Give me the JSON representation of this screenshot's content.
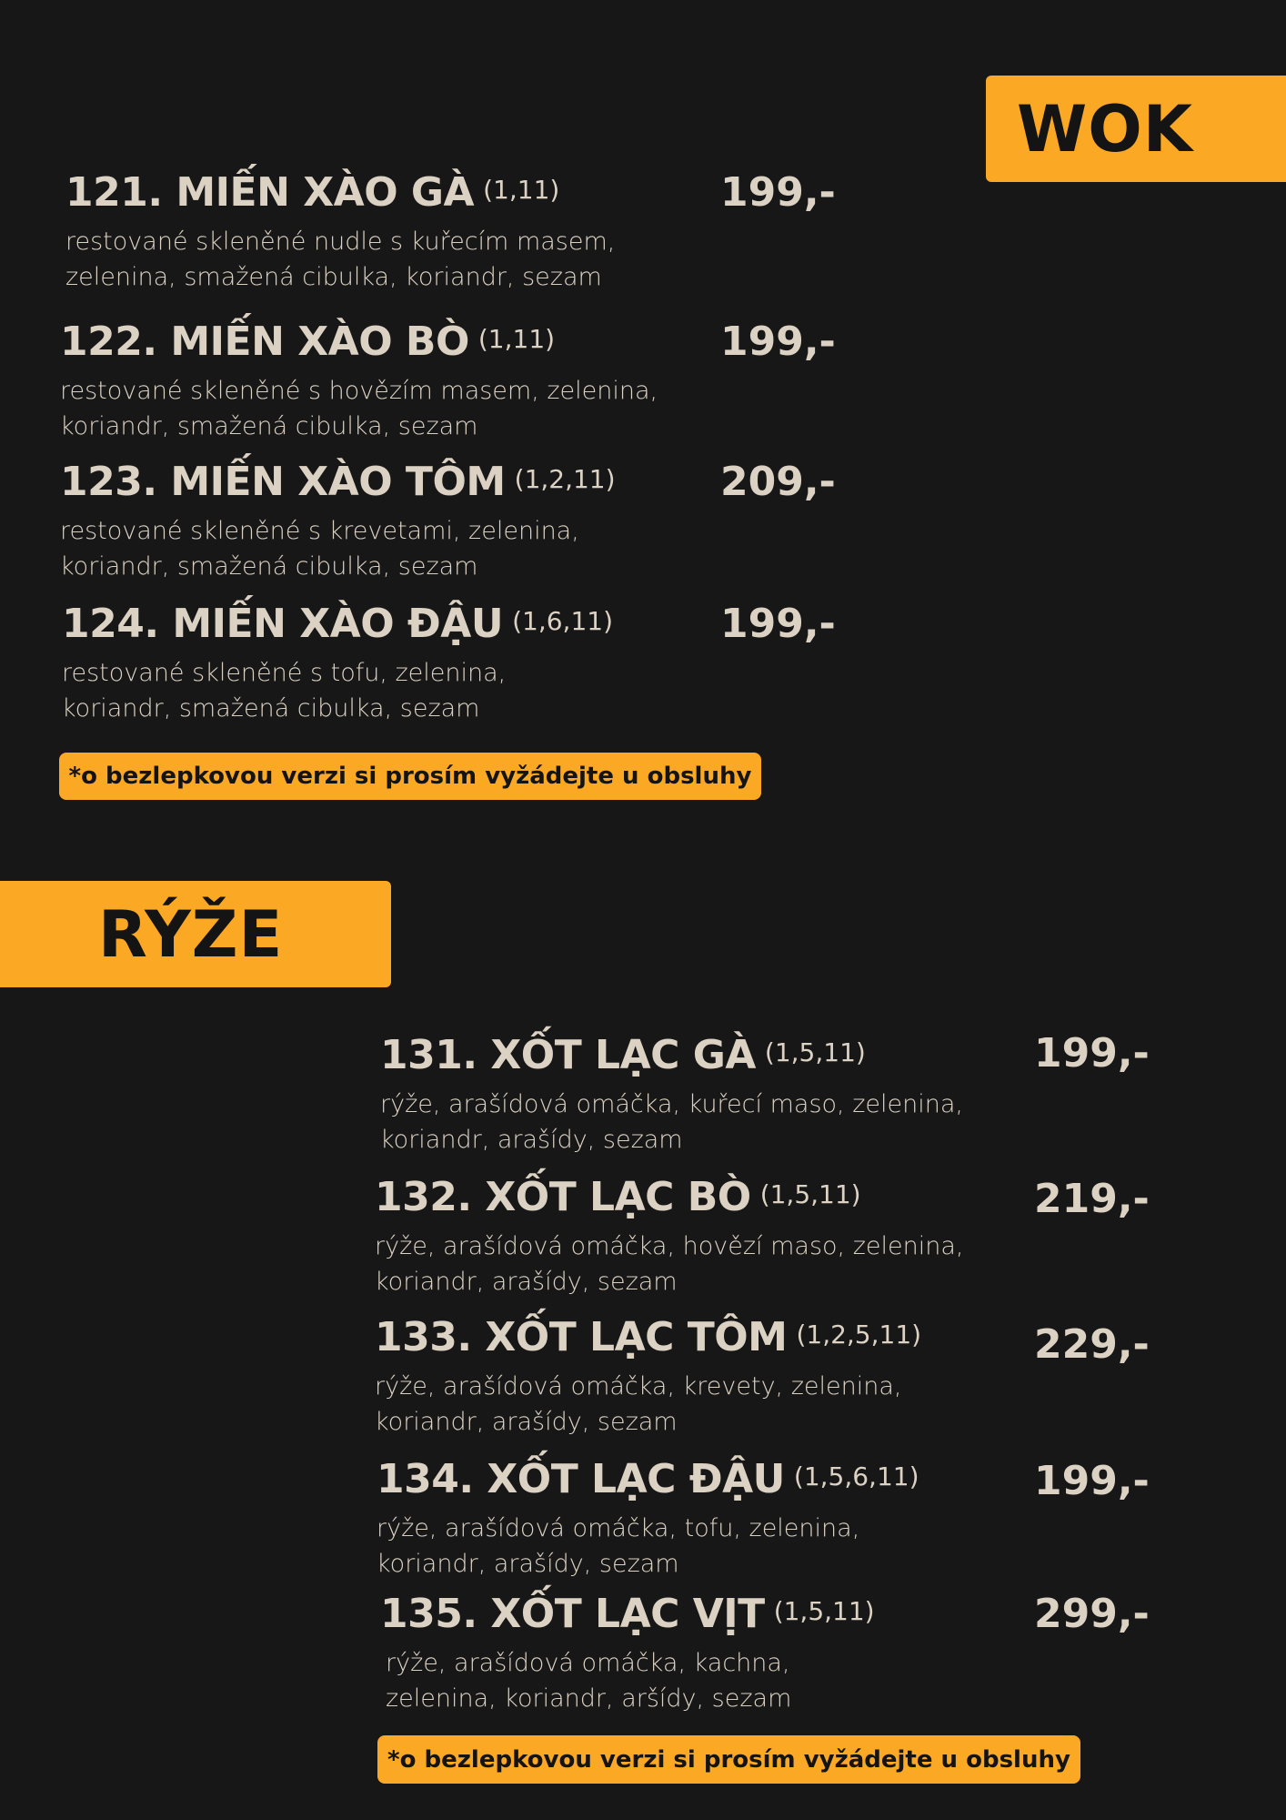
{
  "sections": {
    "wok": {
      "title": "WOK",
      "items": [
        {
          "name": "121. MIẾN XÀO GÀ",
          "allergens": "(1,11)",
          "desc1": "restované skleněné nudle s kuřecím masem,",
          "desc2": "zelenina, smažená cibulka, koriandr, sezam",
          "price": "199,-"
        },
        {
          "name": "122. MIẾN XÀO BÒ",
          "allergens": "(1,11)",
          "desc1": "restované skleněné s hovězím masem, zelenina,",
          "desc2": "koriandr, smažená cibulka, sezam",
          "price": "199,-"
        },
        {
          "name": "123. MIẾN XÀO TÔM",
          "allergens": "(1,2,11)",
          "desc1": "restované skleněné s krevetami, zelenina,",
          "desc2": "koriandr, smažená cibulka, sezam",
          "price": "209,-"
        },
        {
          "name": "124. MIẾN XÀO ĐẬU",
          "allergens": "(1,6,11)",
          "desc1": "restované skleněné s tofu, zelenina,",
          "desc2": "koriandr, smažená cibulka, sezam",
          "price": "199,-"
        }
      ],
      "note": "*o bezlepkovou verzi si prosím vyžádejte u obsluhy"
    },
    "ryze": {
      "title": "RÝŽE",
      "items": [
        {
          "name": "131. XỐT LẠC GÀ",
          "allergens": "(1,5,11)",
          "desc1": "rýže, arašídová omáčka, kuřecí maso, zelenina,",
          "desc2": "koriandr, arašídy, sezam",
          "price": "199,-"
        },
        {
          "name": "132. XỐT LẠC BÒ",
          "allergens": "(1,5,11)",
          "desc1": "rýže, arašídová omáčka, hovězí maso, zelenina,",
          "desc2": "koriandr, arašídy, sezam",
          "price": "219,-"
        },
        {
          "name": "133. XỐT LẠC TÔM",
          "allergens": "(1,2,5,11)",
          "desc1": "rýže, arašídová omáčka, krevety, zelenina,",
          "desc2": "koriandr, arašídy, sezam",
          "price": "229,-"
        },
        {
          "name": "134. XỐT LẠC ĐẬU",
          "allergens": "(1,5,6,11)",
          "desc1": "rýže, arašídová omáčka, tofu, zelenina,",
          "desc2": "koriandr, arašídy, sezam",
          "price": "199,-"
        },
        {
          "name": "135. XỐT LẠC VỊT",
          "allergens": "(1,5,11)",
          "desc1": "rýže, arašídová omáčka, kachna,",
          "desc2": "zelenina, koriandr, aršídy, sezam",
          "price": "299,-"
        }
      ],
      "note": "*o bezlepkovou verzi si prosím vyžádejte u obsluhy"
    }
  },
  "colors": {
    "background": "#171717",
    "accent": "#fba824",
    "text": "#dcd2c4"
  }
}
